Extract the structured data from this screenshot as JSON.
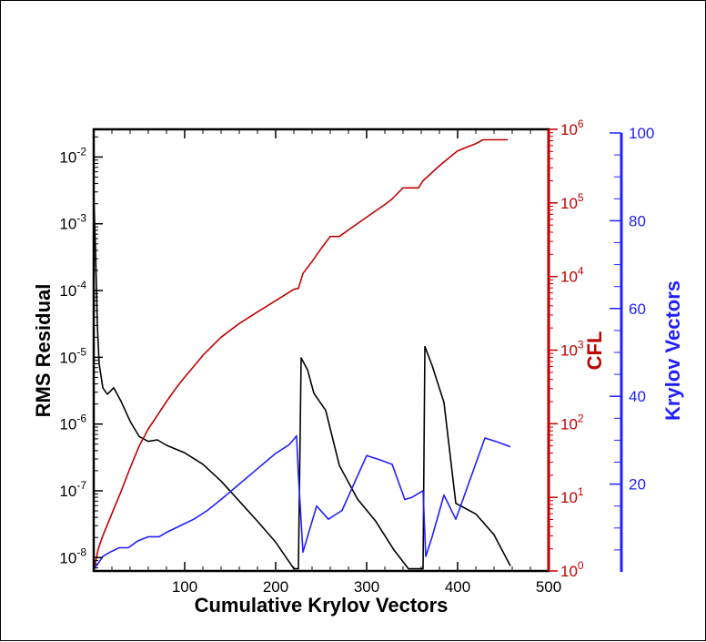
{
  "chart_data": {
    "type": "line",
    "title": "",
    "xlabel": "Cumulative Krylov Vectors",
    "xlim": [
      0,
      500
    ],
    "x_ticks": [
      {
        "value": 100,
        "label": "100"
      },
      {
        "value": 200,
        "label": "200"
      },
      {
        "value": 300,
        "label": "300"
      },
      {
        "value": 400,
        "label": "400"
      },
      {
        "value": 500,
        "label": "500"
      }
    ],
    "grid": false,
    "legend": "none",
    "axes": {
      "residual": {
        "label": "RMS Residual",
        "scale": "log",
        "ylim": [
          6.3e-09,
          0.026
        ],
        "color": "#000000",
        "ticks": [
          {
            "exp": "-8",
            "value": 1e-08
          },
          {
            "exp": "-7",
            "value": 1e-07
          },
          {
            "exp": "-6",
            "value": 1e-06
          },
          {
            "exp": "-5",
            "value": 1e-05
          },
          {
            "exp": "-4",
            "value": 0.0001
          },
          {
            "exp": "-3",
            "value": 0.001
          },
          {
            "exp": "-2",
            "value": 0.01
          }
        ]
      },
      "cfl": {
        "label": "CFL",
        "scale": "log",
        "ylim": [
          1,
          1000000
        ],
        "color": "#c00000",
        "ticks": [
          {
            "exp": "0",
            "value": 1
          },
          {
            "exp": "1",
            "value": 10
          },
          {
            "exp": "2",
            "value": 100
          },
          {
            "exp": "3",
            "value": 1000
          },
          {
            "exp": "4",
            "value": 10000
          },
          {
            "exp": "5",
            "value": 100000
          },
          {
            "exp": "6",
            "value": 1000000
          }
        ]
      },
      "krylov": {
        "label": "Krylov Vectors",
        "scale": "linear",
        "ylim": [
          0,
          100
        ],
        "color": "#2020ff",
        "ticks": [
          {
            "value": 20,
            "label": "20"
          },
          {
            "value": 40,
            "label": "40"
          },
          {
            "value": 60,
            "label": "60"
          },
          {
            "value": 80,
            "label": "80"
          },
          {
            "value": 100,
            "label": "100"
          }
        ]
      }
    },
    "series": [
      {
        "axis": "residual",
        "color": "#000000",
        "points": [
          [
            0,
            0.003
          ],
          [
            2,
            0.0004
          ],
          [
            4,
            3e-05
          ],
          [
            6,
            8e-06
          ],
          [
            10,
            3.5e-06
          ],
          [
            15,
            2.8e-06
          ],
          [
            22,
            3.5e-06
          ],
          [
            30,
            2.2e-06
          ],
          [
            40,
            1.1e-06
          ],
          [
            50,
            6.5e-07
          ],
          [
            60,
            5.5e-07
          ],
          [
            70,
            5.8e-07
          ],
          [
            80,
            4.8e-07
          ],
          [
            100,
            3.7e-07
          ],
          [
            120,
            2.5e-07
          ],
          [
            140,
            1.4e-07
          ],
          [
            160,
            7e-08
          ],
          [
            180,
            3.5e-08
          ],
          [
            200,
            1.7e-08
          ],
          [
            220,
            6.8e-09
          ],
          [
            224,
            6.8e-09
          ],
          [
            225,
            6.8e-09
          ],
          [
            228,
            9.8e-06
          ],
          [
            235,
            6.5e-06
          ],
          [
            242,
            2.9e-06
          ],
          [
            255,
            1.6e-06
          ],
          [
            270,
            2.4e-07
          ],
          [
            290,
            7.5e-08
          ],
          [
            310,
            3.5e-08
          ],
          [
            330,
            1.3e-08
          ],
          [
            346,
            6.8e-09
          ],
          [
            360,
            6.8e-09
          ],
          [
            362,
            6.8e-09
          ],
          [
            364,
            1.45e-05
          ],
          [
            372,
            7.5e-06
          ],
          [
            385,
            2.1e-06
          ],
          [
            398,
            6.5e-08
          ],
          [
            420,
            4.5e-08
          ],
          [
            440,
            2.2e-08
          ],
          [
            458,
            7.5e-09
          ]
        ]
      },
      {
        "axis": "cfl",
        "color": "#c00000",
        "points": [
          [
            0,
            1
          ],
          [
            5,
            2
          ],
          [
            10,
            3
          ],
          [
            20,
            6
          ],
          [
            30,
            12
          ],
          [
            40,
            25
          ],
          [
            50,
            50
          ],
          [
            60,
            85
          ],
          [
            70,
            130
          ],
          [
            80,
            200
          ],
          [
            90,
            300
          ],
          [
            100,
            430
          ],
          [
            110,
            600
          ],
          [
            120,
            850
          ],
          [
            140,
            1500
          ],
          [
            160,
            2300
          ],
          [
            180,
            3300
          ],
          [
            200,
            4700
          ],
          [
            220,
            6700
          ],
          [
            225,
            6900
          ],
          [
            230,
            11000
          ],
          [
            240,
            16000
          ],
          [
            250,
            24000
          ],
          [
            260,
            35000
          ],
          [
            270,
            35000
          ],
          [
            280,
            43000
          ],
          [
            300,
            64000
          ],
          [
            320,
            95000
          ],
          [
            328,
            113000
          ],
          [
            340,
            160000
          ],
          [
            357,
            160000
          ],
          [
            362,
            200000
          ],
          [
            380,
            320000
          ],
          [
            400,
            510000
          ],
          [
            420,
            640000
          ],
          [
            428,
            720000
          ],
          [
            455,
            720000
          ]
        ]
      },
      {
        "axis": "krylov",
        "color": "#2020ff",
        "points": [
          [
            0,
            0.5
          ],
          [
            5,
            2
          ],
          [
            10,
            3.5
          ],
          [
            18,
            4.5
          ],
          [
            28,
            5.5
          ],
          [
            38,
            5.5
          ],
          [
            48,
            7
          ],
          [
            60,
            8
          ],
          [
            72,
            8
          ],
          [
            80,
            9
          ],
          [
            95,
            10.5
          ],
          [
            110,
            12
          ],
          [
            125,
            14
          ],
          [
            140,
            16.5
          ],
          [
            160,
            20
          ],
          [
            180,
            23.5
          ],
          [
            200,
            27
          ],
          [
            215,
            29
          ],
          [
            223,
            31
          ],
          [
            225,
            22
          ],
          [
            230,
            4.5
          ],
          [
            245,
            15
          ],
          [
            258,
            12
          ],
          [
            273,
            14
          ],
          [
            300,
            26.5
          ],
          [
            315,
            25.5
          ],
          [
            328,
            24.5
          ],
          [
            342,
            16.5
          ],
          [
            350,
            17
          ],
          [
            362,
            18.5
          ],
          [
            365,
            3.5
          ],
          [
            372,
            8
          ],
          [
            385,
            17.5
          ],
          [
            398,
            12
          ],
          [
            405,
            16
          ],
          [
            430,
            30.5
          ],
          [
            445,
            29.5
          ],
          [
            458,
            28.5
          ]
        ]
      }
    ]
  }
}
